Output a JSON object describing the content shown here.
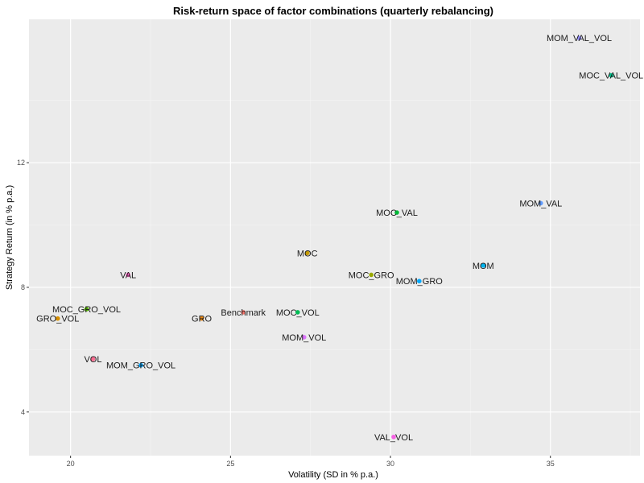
{
  "chart_data": {
    "type": "scatter",
    "title": "Risk-return space of factor combinations (quarterly rebalancing)",
    "xlabel": "Volatility (SD in % p.a.)",
    "ylabel": "Strategy Return (in % p.a.)",
    "xlim": [
      18.7,
      37.8
    ],
    "ylim": [
      2.6,
      16.6
    ],
    "x_ticks": [
      20,
      25,
      30,
      35
    ],
    "y_ticks": [
      4,
      8,
      12
    ],
    "x_tick_labels": [
      "20",
      "25",
      "30",
      "35"
    ],
    "y_tick_labels": [
      "4",
      "8",
      "12"
    ],
    "grid": true,
    "legend": "none",
    "points": [
      {
        "label": "MOM_VAL_VOL",
        "x": 35.9,
        "y": 16.0,
        "color": "#9590FF"
      },
      {
        "label": "MOC_VAL_VOL",
        "x": 36.9,
        "y": 14.8,
        "color": "#00C08B"
      },
      {
        "label": "MOM_VAL",
        "x": 34.7,
        "y": 10.7,
        "color": "#619CFF"
      },
      {
        "label": "MOC_VAL",
        "x": 30.2,
        "y": 10.4,
        "color": "#00BA38"
      },
      {
        "label": "MOC",
        "x": 27.4,
        "y": 9.1,
        "color": "#C49A00"
      },
      {
        "label": "MOM",
        "x": 32.9,
        "y": 8.7,
        "color": "#00B4EF"
      },
      {
        "label": "MOC_GRO",
        "x": 29.4,
        "y": 8.4,
        "color": "#99A800"
      },
      {
        "label": "MOM_GRO",
        "x": 30.9,
        "y": 8.2,
        "color": "#00A9FF"
      },
      {
        "label": "VAL",
        "x": 21.8,
        "y": 8.4,
        "color": "#FF61C3"
      },
      {
        "label": "MOC_GRO_VOL",
        "x": 20.5,
        "y": 7.3,
        "color": "#53B400"
      },
      {
        "label": "GRO_VOL",
        "x": 19.6,
        "y": 7.0,
        "color": "#D89000"
      },
      {
        "label": "GRO",
        "x": 24.1,
        "y": 7.0,
        "color": "#E68613"
      },
      {
        "label": "Benchmark",
        "x": 25.4,
        "y": 7.2,
        "color": "#F8766D"
      },
      {
        "label": "MOC_VOL",
        "x": 27.1,
        "y": 7.2,
        "color": "#00BC56"
      },
      {
        "label": "MOM_VOL",
        "x": 27.3,
        "y": 6.4,
        "color": "#DB72FB"
      },
      {
        "label": "VOL",
        "x": 20.7,
        "y": 5.7,
        "color": "#FF6C91"
      },
      {
        "label": "MOM_GRO_VOL",
        "x": 22.2,
        "y": 5.5,
        "color": "#00A5FF"
      },
      {
        "label": "VAL_VOL",
        "x": 30.1,
        "y": 3.2,
        "color": "#F564E3"
      }
    ]
  }
}
